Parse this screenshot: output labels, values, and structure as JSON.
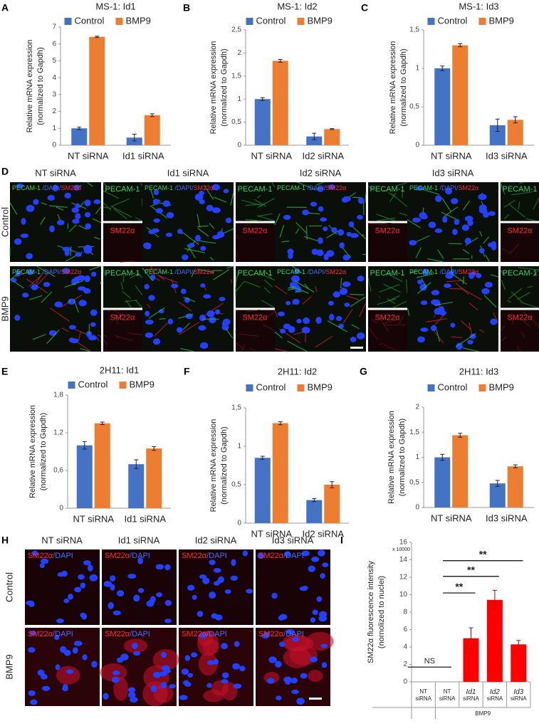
{
  "chart_data": [
    {
      "type": "bar",
      "label": "A",
      "title": "MS-1: Id1",
      "ylabel": [
        "Relative mRNA expression",
        "(normalized to Gapdh)"
      ],
      "categories": [
        "NT siRNA",
        "Id1 siRNA"
      ],
      "series": [
        {
          "name": "Control",
          "color": "#4472c4",
          "values": [
            1.0,
            0.45
          ],
          "errors": [
            0.07,
            0.2
          ]
        },
        {
          "name": "BMP9",
          "color": "#ed7d31",
          "values": [
            6.42,
            1.78
          ],
          "errors": [
            0.04,
            0.08
          ]
        }
      ],
      "ylim": [
        0,
        7
      ],
      "yticks": [
        0,
        1,
        2,
        3,
        4,
        5,
        6,
        7
      ]
    },
    {
      "type": "bar",
      "label": "B",
      "title": "MS-1: Id2",
      "ylabel": [
        "Relative mRNA expression",
        "(normalized to Gapdh)"
      ],
      "categories": [
        "NT siRNA",
        "Id2 siRNA"
      ],
      "series": [
        {
          "name": "Control",
          "color": "#4472c4",
          "values": [
            1.0,
            0.19
          ],
          "errors": [
            0.03,
            0.07
          ]
        },
        {
          "name": "BMP9",
          "color": "#ed7d31",
          "values": [
            1.83,
            0.35
          ],
          "errors": [
            0.03,
            0.01
          ]
        }
      ],
      "ylim": [
        0,
        2.5
      ],
      "yticks": [
        0,
        {
          "value": 0.5,
          "label": "0,5"
        },
        1,
        {
          "value": 1.5,
          "label": "1,5"
        },
        2,
        {
          "value": 2.5,
          "label": "2,5"
        }
      ]
    },
    {
      "type": "bar",
      "label": "C",
      "title": "MS-1: Id3",
      "ylabel": [
        "Relative mRNA expression",
        "(normalized to Gapdh)"
      ],
      "categories": [
        "NT siRNA",
        "Id3 siRNA"
      ],
      "series": [
        {
          "name": "Control",
          "color": "#4472c4",
          "values": [
            1.0,
            0.26
          ],
          "errors": [
            0.03,
            0.08
          ]
        },
        {
          "name": "BMP9",
          "color": "#ed7d31",
          "values": [
            1.3,
            0.33
          ],
          "errors": [
            0.02,
            0.04
          ]
        }
      ],
      "ylim": [
        0,
        1.5
      ],
      "yticks": [
        0,
        {
          "value": 0.5,
          "label": "0,5"
        },
        1,
        {
          "value": 1.5,
          "label": "1,5"
        }
      ]
    },
    {
      "type": "bar",
      "label": "E",
      "title": "2H11: Id1",
      "ylabel": [
        "Relative mRNA expression",
        "(normalized to Gapdh)"
      ],
      "categories": [
        "NT siRNA",
        "Id1 siRNA"
      ],
      "series": [
        {
          "name": "Control",
          "color": "#4472c4",
          "values": [
            1.0,
            0.7
          ],
          "errors": [
            0.06,
            0.07
          ]
        },
        {
          "name": "BMP9",
          "color": "#ed7d31",
          "values": [
            1.35,
            0.95
          ],
          "errors": [
            0.02,
            0.03
          ]
        }
      ],
      "ylim": [
        0,
        1.8
      ],
      "yticks": [
        0,
        {
          "value": 0.6,
          "label": "0,6"
        },
        {
          "value": 1.2,
          "label": "1,2"
        },
        {
          "value": 1.8,
          "label": "1,8"
        }
      ]
    },
    {
      "type": "bar",
      "label": "F",
      "title": "2H11: Id2",
      "ylabel": [
        "Relative mRNA expression",
        "(normalized to Gapdh)"
      ],
      "categories": [
        "NT siRNA",
        "Id2 siRNA"
      ],
      "series": [
        {
          "name": "Control",
          "color": "#4472c4",
          "values": [
            0.85,
            0.3
          ],
          "errors": [
            0.02,
            0.02
          ]
        },
        {
          "name": "BMP9",
          "color": "#ed7d31",
          "values": [
            1.3,
            0.5
          ],
          "errors": [
            0.02,
            0.04
          ]
        }
      ],
      "ylim": [
        0,
        1.5
      ],
      "yticks": [
        0,
        {
          "value": 0.5,
          "label": "0,5"
        },
        1,
        {
          "value": 1.5,
          "label": "1,5"
        }
      ]
    },
    {
      "type": "bar",
      "label": "G",
      "title": "2H11: Id3",
      "ylabel": [
        "Relative mRNA expression",
        "(normalized to Gapdh)"
      ],
      "categories": [
        "NT siRNA",
        "Id3 siRNA"
      ],
      "series": [
        {
          "name": "Control",
          "color": "#4472c4",
          "values": [
            1.0,
            0.48
          ],
          "errors": [
            0.06,
            0.06
          ]
        },
        {
          "name": "BMP9",
          "color": "#ed7d31",
          "values": [
            1.44,
            0.82
          ],
          "errors": [
            0.04,
            0.03
          ]
        }
      ],
      "ylim": [
        0,
        2
      ],
      "yticks": [
        0,
        {
          "value": 0.5,
          "label": "0,5"
        },
        1,
        {
          "value": 1.5,
          "label": "1,5"
        },
        2
      ]
    },
    {
      "type": "bar",
      "label": "I",
      "ylabel": [
        "SM22α fluorescence intensity",
        "(nornolized to nuclei)"
      ],
      "y_multiplier_label": "x 10000",
      "categories": [
        [
          "NT",
          "siRNA"
        ],
        [
          "NT",
          "siRNA"
        ],
        [
          "Id1",
          "siRNA"
        ],
        [
          "Id2",
          "siRNA"
        ],
        [
          "Id3",
          "siRNA"
        ]
      ],
      "x_group_label": "BMP9",
      "values": [
        null,
        null,
        5.0,
        9.4,
        4.3
      ],
      "errors": [
        null,
        null,
        1.2,
        1.1,
        0.45
      ],
      "color": "#ff0000",
      "annotations": [
        "NS",
        "**",
        "**",
        "**"
      ],
      "ylim": [
        0,
        16
      ],
      "yticks": [
        0,
        2,
        4,
        6,
        8,
        10,
        12,
        14,
        16
      ]
    }
  ],
  "image_panels": [
    {
      "label": "D",
      "columns": [
        "NT siRNA",
        "Id1 siRNA",
        "Id2 siRNA",
        "Id3 siRNA"
      ],
      "rows": [
        "Control",
        "BMP9"
      ],
      "merge_label": [
        "PECAM-1 ",
        "/DAPI/",
        "SM22α"
      ],
      "channels": [
        "PECAM-1",
        "SM22α"
      ]
    },
    {
      "label": "H",
      "columns": [
        "NT siRNA",
        "Id1 siRNA",
        "Id2 siRNA",
        "Id3 siRNA"
      ],
      "rows": [
        "Control",
        "BMP9"
      ],
      "merge_label": [
        "SM22α",
        "/DAPI"
      ]
    }
  ]
}
